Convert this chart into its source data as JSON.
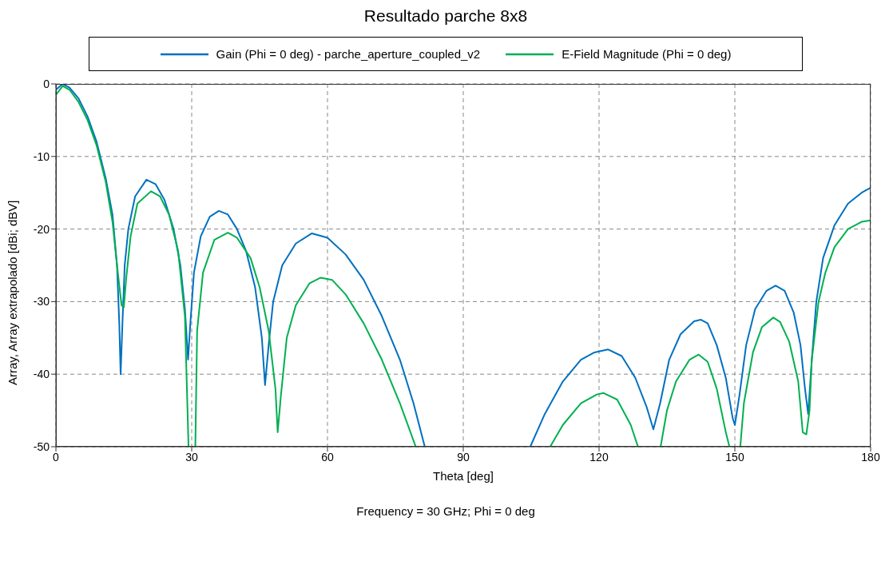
{
  "chart_data": {
    "type": "line",
    "title": "Resultado parche 8x8",
    "xlabel": "Theta [deg]",
    "ylabel": "Array, Array extrapolado [dBi; dBV]",
    "annotations": [
      "Frequency = 30 GHz; Phi = 0 deg"
    ],
    "xlim": [
      0,
      180
    ],
    "ylim": [
      -50,
      0
    ],
    "xticks": [
      0,
      30,
      60,
      90,
      120,
      150,
      180
    ],
    "yticks": [
      -50,
      -40,
      -30,
      -20,
      -10,
      0
    ],
    "grid": true,
    "legend": "top",
    "series": [
      {
        "name": "Gain (Phi = 0 deg) - parche_aperture_coupled_v2",
        "color": "#0070c0",
        "x": [
          0,
          1.5,
          3,
          5,
          7,
          9,
          11,
          12.5,
          13.5,
          14,
          14.3,
          14.7,
          15.2,
          16,
          17.5,
          20,
          22,
          24,
          26,
          27.5,
          28.5,
          29.2,
          29.7,
          30.5,
          32,
          34,
          36,
          38,
          40,
          42,
          44,
          45.5,
          46.2,
          47,
          48,
          50,
          53,
          56.5,
          60,
          64,
          68,
          72,
          76,
          79,
          81.5,
          90,
          104.8,
          108,
          112,
          116,
          119,
          122,
          125,
          128,
          130.5,
          132,
          133.5,
          135.5,
          138,
          141,
          142.5,
          144,
          146,
          148,
          149.5,
          150,
          151,
          152.5,
          154.5,
          157,
          159,
          161,
          163,
          164.5,
          165.5,
          166.2,
          167,
          168,
          169.5,
          172,
          175,
          178,
          180
        ],
        "values": [
          -0.8,
          0,
          -0.5,
          -2,
          -4.5,
          -8,
          -13,
          -18,
          -25,
          -33,
          -40,
          -33,
          -25,
          -20,
          -15.5,
          -13.2,
          -13.8,
          -16,
          -20,
          -25,
          -31,
          -38,
          -33,
          -26,
          -21,
          -18.3,
          -17.5,
          -18,
          -20,
          -23,
          -28,
          -35,
          -41.5,
          -36,
          -30,
          -25,
          -22,
          -20.6,
          -21.2,
          -23.5,
          -27,
          -32,
          -38,
          -44,
          -50,
          null,
          -50,
          -45.5,
          -41,
          -38,
          -37,
          -36.6,
          -37.5,
          -40.5,
          -44.5,
          -47.6,
          -44,
          -38,
          -34.5,
          -32.7,
          -32.5,
          -33,
          -36,
          -40.5,
          -46,
          -47,
          -43,
          -36,
          -31,
          -28.5,
          -27.8,
          -28.5,
          -31.5,
          -36,
          -42,
          -45.5,
          -38,
          -30,
          -24,
          -19.5,
          -16.5,
          -15,
          -14.3
        ]
      },
      {
        "name": "E-Field Magnitude (Phi = 0 deg)",
        "color": "#00b050",
        "x": [
          0,
          1.5,
          3,
          5,
          7,
          9,
          11,
          12.5,
          13.5,
          14.5,
          15,
          15.5,
          16.5,
          18,
          21,
          23,
          25,
          27,
          28.5,
          29.3,
          30,
          30.8,
          31.2,
          32.5,
          35,
          38,
          40,
          43,
          45,
          47,
          48.5,
          49,
          49.7,
          51,
          53,
          56,
          58.5,
          61,
          64,
          68,
          72,
          76,
          79.5,
          90,
          109.2,
          112,
          116,
          119.5,
          121,
          124,
          127,
          128.6,
          131,
          133.6,
          135,
          137,
          140,
          142,
          144,
          146,
          148,
          148.8,
          150,
          151.2,
          152,
          154,
          156,
          158.5,
          160,
          162,
          164,
          165,
          165.8,
          166.5,
          167,
          168.5,
          170,
          172,
          175,
          178,
          180
        ],
        "values": [
          -1.5,
          -0.3,
          -0.8,
          -2.5,
          -5,
          -8.5,
          -13.5,
          -19,
          -25,
          -30.5,
          -30.8,
          -27,
          -21,
          -16.5,
          -14.8,
          -15.5,
          -18,
          -23,
          -32,
          -50,
          null,
          -50,
          -34,
          -26,
          -21.5,
          -20.5,
          -21.2,
          -24,
          -28,
          -34,
          -42,
          -48,
          -43,
          -35,
          -30.5,
          -27.5,
          -26.7,
          -27,
          -29,
          -33,
          -38,
          -44,
          -50,
          null,
          -50,
          -47,
          -44,
          -42.8,
          -42.6,
          -43.5,
          -47,
          -50,
          null,
          -50,
          -45,
          -41,
          -38,
          -37.3,
          -38.3,
          -42,
          -48,
          -50,
          null,
          -50,
          -44,
          -37,
          -33.5,
          -32.2,
          -32.8,
          -35.5,
          -41,
          -48,
          -48.3,
          -45,
          -38,
          -30,
          -26,
          -22.5,
          -20,
          -19,
          -18.8
        ]
      }
    ]
  }
}
